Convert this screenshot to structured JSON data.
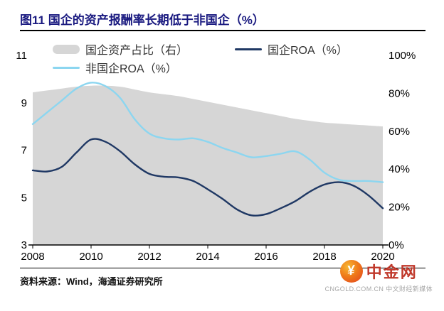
{
  "title": "图11 国企的资产报酬率长期低于非国企（%）",
  "source": "资料来源：Wind，海通证券研究所",
  "watermark": {
    "name": "中金网",
    "sub": "CNGOLD.COM.CN  中文财经新媒体",
    "logo_glyph": "¥",
    "brand_color": "#c0392b"
  },
  "colors": {
    "title_navy": "#1a1a80",
    "area_gray": "#d6d6d6",
    "soe_roa_navy": "#1f3864",
    "non_soe_roa_blue": "#8cd6f0",
    "axis_black": "#000000"
  },
  "chart_data": {
    "type": "line",
    "legend_position": "top",
    "grid": false,
    "x": [
      2008,
      2008.5,
      2009,
      2009.5,
      2010,
      2010.5,
      2011,
      2011.5,
      2012,
      2012.5,
      2013,
      2013.5,
      2014,
      2014.5,
      2015,
      2015.5,
      2016,
      2016.5,
      2017,
      2017.5,
      2018,
      2018.5,
      2019,
      2019.5,
      2020
    ],
    "series": [
      {
        "id": "soe-asset-share",
        "name": "国企资产占比（右）",
        "type": "area",
        "axis": "right",
        "color": "#d6d6d6",
        "values": [
          80.5,
          81.5,
          82.5,
          83.5,
          84,
          84,
          83.5,
          82,
          80.5,
          79.5,
          78.5,
          77,
          75.5,
          74,
          72.5,
          71,
          69.5,
          68,
          66.5,
          65.5,
          64.5,
          64,
          63.5,
          63,
          62.5
        ]
      },
      {
        "id": "non-soe-roa",
        "name": "非国企ROA（%）",
        "type": "line",
        "axis": "left",
        "color": "#8cd6f0",
        "values": [
          8.1,
          8.6,
          9.1,
          9.6,
          9.85,
          9.7,
          9.2,
          8.3,
          7.7,
          7.5,
          7.45,
          7.5,
          7.35,
          7.1,
          6.9,
          6.7,
          6.75,
          6.85,
          6.95,
          6.6,
          6.05,
          5.75,
          5.7,
          5.7,
          5.65
        ]
      },
      {
        "id": "soe-roa",
        "name": "国企ROA（%）",
        "type": "line",
        "axis": "left",
        "color": "#1f3864",
        "values": [
          6.15,
          6.1,
          6.3,
          6.9,
          7.45,
          7.35,
          6.95,
          6.4,
          6.0,
          5.88,
          5.85,
          5.7,
          5.35,
          4.95,
          4.5,
          4.25,
          4.3,
          4.55,
          4.85,
          5.25,
          5.55,
          5.65,
          5.5,
          5.1,
          4.55
        ]
      }
    ],
    "left_axis": {
      "min": 3,
      "max": 11,
      "ticks": [
        11,
        9,
        7,
        5,
        3
      ]
    },
    "right_axis": {
      "min": 0,
      "max": 100,
      "ticks": [
        "100%",
        "80%",
        "60%",
        "40%",
        "20%",
        "0%"
      ]
    },
    "x_axis": {
      "min": 2008,
      "max": 2020,
      "ticks": [
        2008,
        2010,
        2012,
        2014,
        2016,
        2018,
        2020
      ]
    }
  }
}
